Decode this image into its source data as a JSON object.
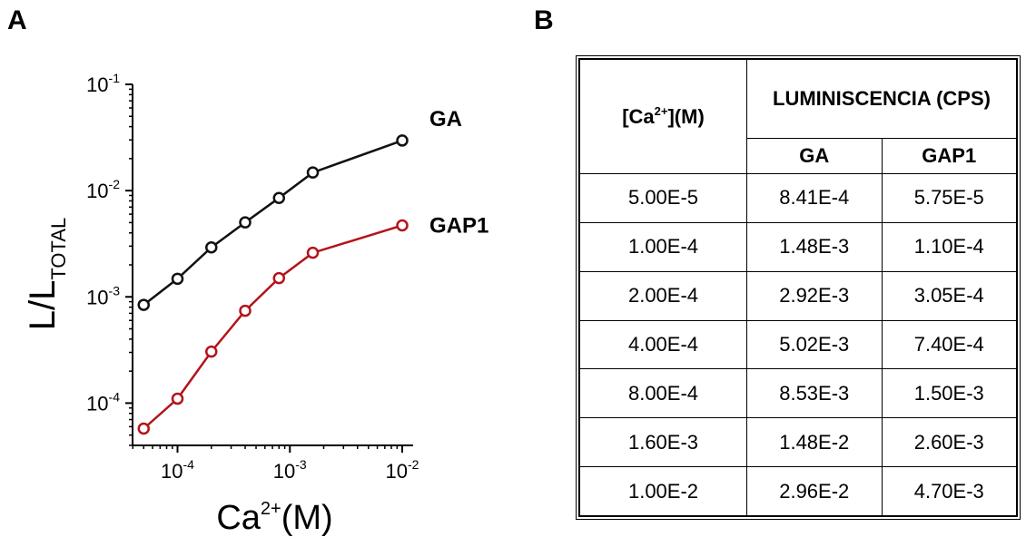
{
  "panels": {
    "a_label": "A",
    "b_label": "B"
  },
  "chart_data": {
    "type": "line",
    "xscale": "log",
    "yscale": "log",
    "xlim": [
      3.98e-05,
      0.0125
    ],
    "ylim": [
      4e-05,
      0.1
    ],
    "xlabel": {
      "base": "Ca",
      "sup": "2+",
      "tail": "(M)"
    },
    "ylabel": {
      "base": "L/L",
      "sub": "TOTAL"
    },
    "x_ticks": [
      {
        "value": 0.0001,
        "base": "10",
        "exp": "-4"
      },
      {
        "value": 0.001,
        "base": "10",
        "exp": "-3"
      },
      {
        "value": 0.01,
        "base": "10",
        "exp": "-2"
      }
    ],
    "y_ticks": [
      {
        "value": 0.0001,
        "base": "10",
        "exp": "-4"
      },
      {
        "value": 0.001,
        "base": "10",
        "exp": "-3"
      },
      {
        "value": 0.01,
        "base": "10",
        "exp": "-2"
      },
      {
        "value": 0.1,
        "base": "10",
        "exp": "-1"
      }
    ],
    "x": [
      5e-05,
      0.0001,
      0.0002,
      0.0004,
      0.0008,
      0.0016,
      0.01
    ],
    "series": [
      {
        "name": "GA",
        "color": "#111111",
        "values": [
          0.000841,
          0.00148,
          0.00292,
          0.00502,
          0.00853,
          0.0148,
          0.0296
        ]
      },
      {
        "name": "GAP1",
        "color": "#b3141b",
        "values": [
          5.75e-05,
          0.00011,
          0.000305,
          0.00074,
          0.0015,
          0.0026,
          0.0047
        ]
      }
    ],
    "grid": false,
    "legend": "labels at line ends"
  },
  "table": {
    "header_ca": {
      "pre": "[Ca",
      "sup": "2+",
      "post": "](M)"
    },
    "header_lum": "LUMINISCENCIA (CPS)",
    "sub_ga": "GA",
    "sub_gap1": "GAP1",
    "rows": [
      [
        "5.00E-5",
        "8.41E-4",
        "5.75E-5"
      ],
      [
        "1.00E-4",
        "1.48E-3",
        "1.10E-4"
      ],
      [
        "2.00E-4",
        "2.92E-3",
        "3.05E-4"
      ],
      [
        "4.00E-4",
        "5.02E-3",
        "7.40E-4"
      ],
      [
        "8.00E-4",
        "8.53E-3",
        "1.50E-3"
      ],
      [
        "1.60E-3",
        "1.48E-2",
        "2.60E-3"
      ],
      [
        "1.00E-2",
        "2.96E-2",
        "4.70E-3"
      ]
    ]
  }
}
